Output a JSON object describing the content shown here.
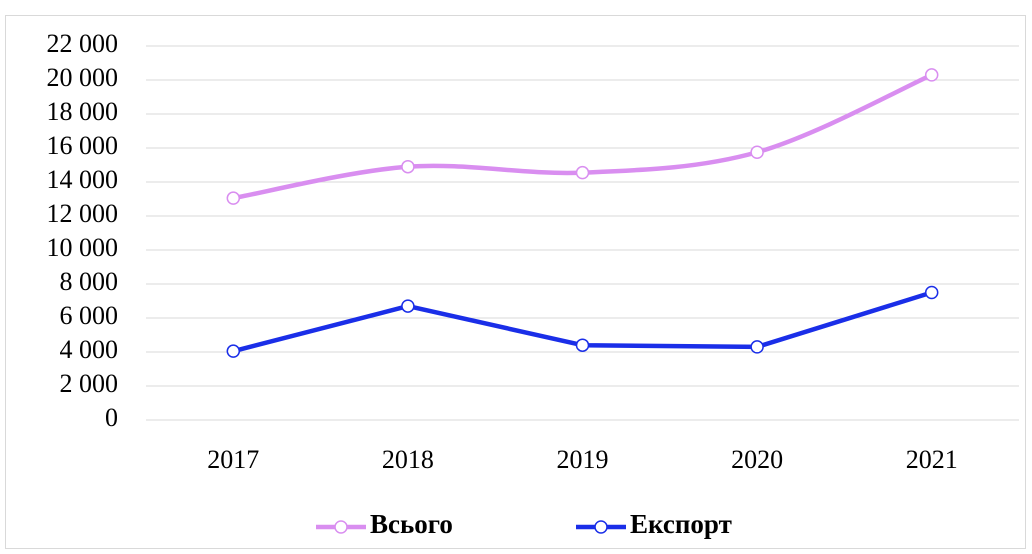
{
  "chart_data": {
    "type": "line",
    "categories": [
      "2017",
      "2018",
      "2019",
      "2020",
      "2021"
    ],
    "series": [
      {
        "name": "Всього",
        "color": "#d98ef0",
        "smooth": true,
        "values": [
          13050,
          14900,
          14550,
          15750,
          20300
        ]
      },
      {
        "name": "Експорт",
        "color": "#1a2ee8",
        "smooth": false,
        "values": [
          4050,
          6700,
          4400,
          4300,
          7500
        ]
      }
    ],
    "ylim": [
      0,
      22000
    ],
    "yticks": [
      0,
      {
        "value": 2000,
        "label": "2 000"
      },
      {
        "value": 4000,
        "label": "4 000"
      },
      {
        "value": 6000,
        "label": "6 000"
      },
      {
        "value": 8000,
        "label": "8 000"
      },
      {
        "value": 10000,
        "label": "10 000"
      },
      {
        "value": 12000,
        "label": "12 000"
      },
      {
        "value": 14000,
        "label": "14 000"
      },
      {
        "value": 16000,
        "label": "16 000"
      },
      {
        "value": 18000,
        "label": "18 000"
      },
      {
        "value": 20000,
        "label": "20 000"
      },
      {
        "value": 22000,
        "label": "22 000"
      }
    ],
    "grid": true,
    "legend": "bottom"
  }
}
